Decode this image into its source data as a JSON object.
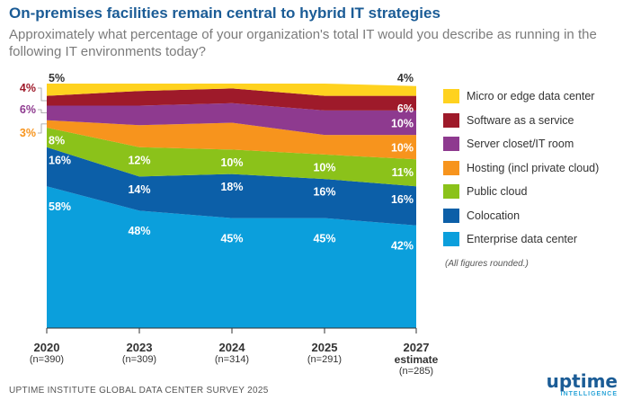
{
  "header": {
    "title": "On-premises facilities remain central to hybrid IT strategies",
    "subtitle": "Approximately what percentage of your organization's total IT would you describe as running in the following IT environments today?"
  },
  "note": "(All figures rounded.)",
  "source": "UPTIME INSTITUTE GLOBAL DATA CENTER SURVEY 2025",
  "logo": {
    "word": "uptime",
    "sub": "INTELLIGENCE"
  },
  "chart_data": {
    "type": "area",
    "stacked": true,
    "title": "On-premises facilities remain central to hybrid IT strategies",
    "subtitle": "Approximately what percentage of your organization's total IT would you describe as running in the following IT environments today?",
    "ylim": [
      0,
      100
    ],
    "grid": false,
    "legend_position": "right",
    "x": [
      {
        "year": "2020",
        "extra": "",
        "n": "(n=390)"
      },
      {
        "year": "2023",
        "extra": "",
        "n": "(n=309)"
      },
      {
        "year": "2024",
        "extra": "",
        "n": "(n=314)"
      },
      {
        "year": "2025",
        "extra": "",
        "n": "(n=291)"
      },
      {
        "year": "2027",
        "extra": "estimate",
        "n": "(n=285)"
      }
    ],
    "series": [
      {
        "name": "Enterprise data center",
        "color": "#0b9fdc",
        "values": [
          58,
          48,
          45,
          45,
          42
        ]
      },
      {
        "name": "Colocation",
        "color": "#0c5fa8",
        "values": [
          16,
          14,
          18,
          16,
          16
        ]
      },
      {
        "name": "Public cloud",
        "color": "#8bc21a",
        "values": [
          8,
          12,
          10,
          10,
          11
        ]
      },
      {
        "name": "Hosting (incl private cloud)",
        "color": "#f7941d",
        "values": [
          3,
          9,
          11,
          8,
          10
        ]
      },
      {
        "name": "Server closet/IT room",
        "color": "#8e3a8f",
        "values": [
          6,
          8,
          8,
          10,
          10
        ]
      },
      {
        "name": "Software as a service",
        "color": "#9e1a2a",
        "values": [
          4,
          6,
          6,
          6,
          6
        ]
      },
      {
        "name": "Micro or edge data center",
        "color": "#ffd21f",
        "values": [
          5,
          3,
          2,
          5,
          4
        ]
      }
    ],
    "labels": [
      {
        "series": 0,
        "point": 0,
        "text": "58%"
      },
      {
        "series": 0,
        "point": 1,
        "text": "48%"
      },
      {
        "series": 0,
        "point": 2,
        "text": "45%"
      },
      {
        "series": 0,
        "point": 3,
        "text": "45%"
      },
      {
        "series": 0,
        "point": 4,
        "text": "42%"
      },
      {
        "series": 1,
        "point": 0,
        "text": "16%"
      },
      {
        "series": 1,
        "point": 1,
        "text": "14%"
      },
      {
        "series": 1,
        "point": 2,
        "text": "18%"
      },
      {
        "series": 1,
        "point": 3,
        "text": "16%"
      },
      {
        "series": 1,
        "point": 4,
        "text": "16%"
      },
      {
        "series": 2,
        "point": 0,
        "text": "8%"
      },
      {
        "series": 2,
        "point": 1,
        "text": "12%"
      },
      {
        "series": 2,
        "point": 2,
        "text": "10%"
      },
      {
        "series": 2,
        "point": 3,
        "text": "10%"
      },
      {
        "series": 2,
        "point": 4,
        "text": "11%"
      },
      {
        "series": 3,
        "point": 4,
        "text": "10%"
      },
      {
        "series": 4,
        "point": 4,
        "text": "10%"
      },
      {
        "series": 5,
        "point": 4,
        "text": "6%"
      },
      {
        "series": 6,
        "point": 0,
        "text": "5%"
      },
      {
        "series": 6,
        "point": 4,
        "text": "4%"
      }
    ],
    "left_labels": [
      {
        "series": 5,
        "text": "4%",
        "color": "#9e1a2a"
      },
      {
        "series": 4,
        "text": "6%",
        "color": "#8e3a8f"
      },
      {
        "series": 3,
        "text": "3%",
        "color": "#f7941d"
      }
    ]
  }
}
